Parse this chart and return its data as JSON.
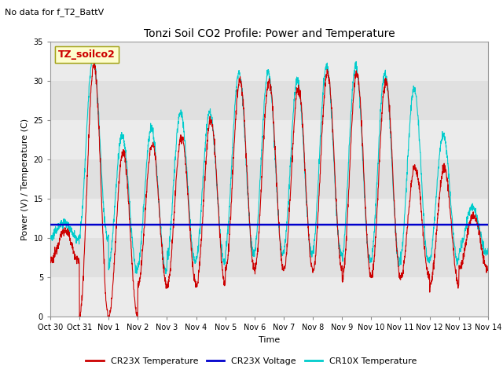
{
  "title": "Tonzi Soil CO2 Profile: Power and Temperature",
  "subtitle": "No data for f_T2_BattV",
  "ylabel": "Power (V) / Temperature (C)",
  "xlabel": "Time",
  "ylim": [
    0,
    35
  ],
  "xlim": [
    0,
    15
  ],
  "xtick_labels": [
    "Oct 30",
    "Oct 31",
    "Nov 1",
    "Nov 2",
    "Nov 3",
    "Nov 4",
    "Nov 5",
    "Nov 6",
    "Nov 7",
    "Nov 8",
    "Nov 9",
    "Nov 10",
    "Nov 11",
    "Nov 12",
    "Nov 13",
    "Nov 14"
  ],
  "xtick_positions": [
    0,
    1,
    2,
    3,
    4,
    5,
    6,
    7,
    8,
    9,
    10,
    11,
    12,
    13,
    14,
    15
  ],
  "ytick_labels": [
    "0",
    "5",
    "10",
    "15",
    "20",
    "25",
    "30",
    "35"
  ],
  "ytick_positions": [
    0,
    5,
    10,
    15,
    20,
    25,
    30,
    35
  ],
  "voltage_value": 11.7,
  "legend_label_box": "TZ_soilco2",
  "legend_entries": [
    "CR23X Temperature",
    "CR23X Voltage",
    "CR10X Temperature"
  ],
  "bg_color": "#ffffff",
  "plot_bg_color": "#ffffff",
  "band_color_dark": "#e0e0e0",
  "band_color_light": "#ebebeb",
  "cr23x_temp_color": "#cc0000",
  "cr10x_temp_color": "#00cccc",
  "voltage_color": "#0000cc",
  "legend_box_edge_color": "#999900",
  "legend_box_face_color": "#ffffcc",
  "legend_text_color": "#cc0000",
  "subtitle_fontsize": 8,
  "title_fontsize": 10,
  "tick_fontsize": 7,
  "ylabel_fontsize": 8,
  "xlabel_fontsize": 8
}
